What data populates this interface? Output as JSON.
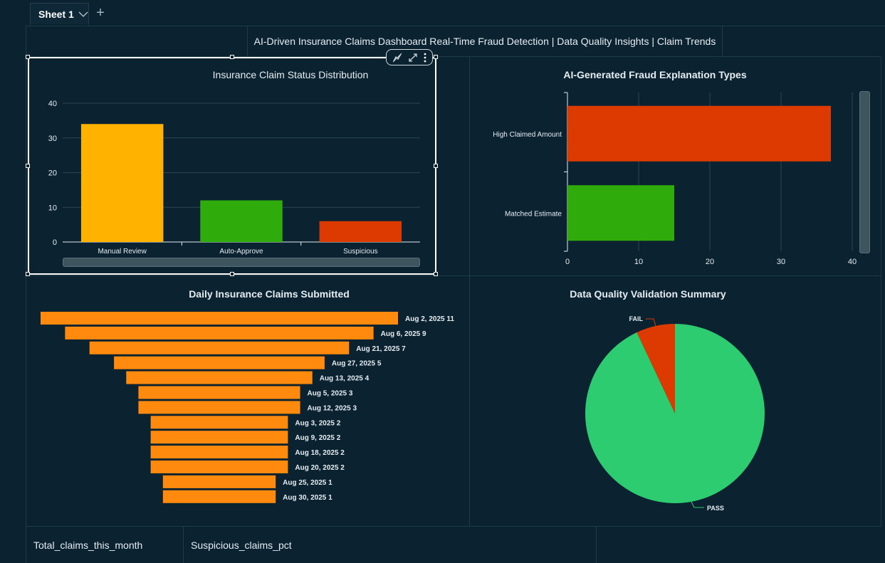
{
  "sheet": {
    "tab_label": "Sheet 1",
    "add_tab": "+"
  },
  "header": {
    "title": "AI-Driven Insurance Claims Dashboard Real-Time Fraud Detection | Data Quality Insights | Claim Trends"
  },
  "kpis": [
    {
      "label": "Total_claims_this_month"
    },
    {
      "label": "Suspicious_claims_pct"
    }
  ],
  "chart_data": [
    {
      "type": "bar",
      "title": "Insurance Claim Status Distribution",
      "categories": [
        "Manual Review",
        "Auto-Approve",
        "Suspicious"
      ],
      "values": [
        34,
        12,
        6
      ],
      "colors": [
        "#ffb300",
        "#2fac0c",
        "#dc3a00"
      ],
      "ylim": [
        0,
        40
      ],
      "yticks": [
        0,
        10,
        20,
        30,
        40
      ],
      "grid": true
    },
    {
      "type": "bar",
      "orientation": "horizontal",
      "title": "AI-Generated Fraud Explanation Types",
      "categories": [
        "High Claimed Amount",
        "Matched Estimate"
      ],
      "values": [
        37,
        15
      ],
      "colors": [
        "#dc3a00",
        "#2fac0c"
      ],
      "xlim": [
        0,
        40
      ],
      "xticks": [
        0,
        10,
        20,
        30,
        40
      ],
      "grid": true
    },
    {
      "type": "bar",
      "orientation": "funnel",
      "title": "Daily Insurance Claims Submitted",
      "color": "#ff8a0e",
      "categories": [
        "Aug 2, 2025",
        "Aug 6, 2025",
        "Aug 21, 2025",
        "Aug 27, 2025",
        "Aug 13, 2025",
        "Aug 5, 2025",
        "Aug 12, 2025",
        "Aug 3, 2025",
        "Aug 9, 2025",
        "Aug 18, 2025",
        "Aug 20, 2025",
        "Aug 25, 2025",
        "Aug 30, 2025"
      ],
      "values": [
        11,
        9,
        7,
        5,
        4,
        3,
        3,
        2,
        2,
        2,
        2,
        1,
        1
      ]
    },
    {
      "type": "pie",
      "title": "Data Quality Validation Summary",
      "labels": [
        "FAIL",
        "PASS"
      ],
      "values": [
        7,
        93
      ],
      "colors": [
        "#dc3a00",
        "#2ecc71"
      ]
    }
  ]
}
